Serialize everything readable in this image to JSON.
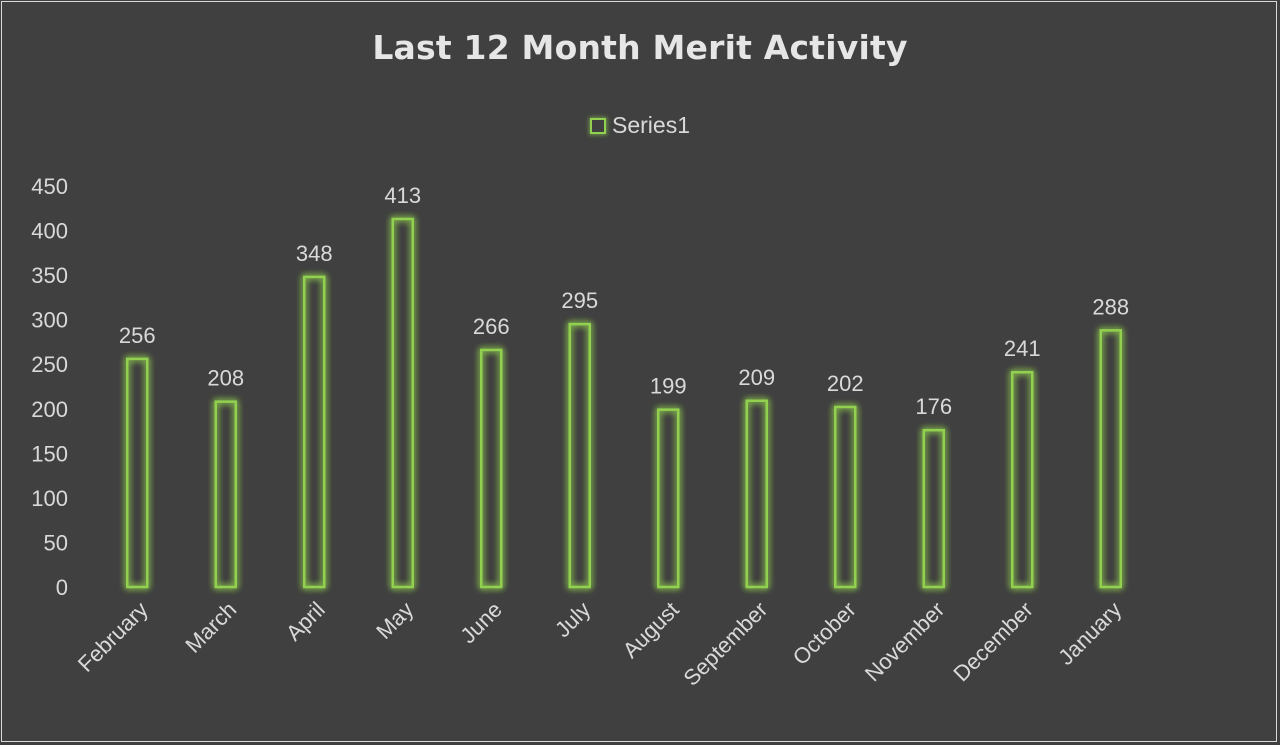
{
  "chart_data": {
    "type": "bar",
    "title": "Last 12 Month Merit Activity",
    "categories": [
      "February",
      "March",
      "April",
      "May",
      "June",
      "July",
      "August",
      "September",
      "October",
      "November",
      "December",
      "January"
    ],
    "series": [
      {
        "name": "Series1",
        "values": [
          256,
          208,
          348,
          413,
          266,
          295,
          199,
          209,
          202,
          176,
          241,
          288
        ],
        "color": "#92d050"
      }
    ],
    "xlabel": "",
    "ylabel": "",
    "ylim": [
      0,
      450
    ],
    "yticks": [
      0,
      50,
      100,
      150,
      200,
      250,
      300,
      350,
      400,
      450
    ],
    "grid": false,
    "legend": "top-center",
    "data_labels": true,
    "bar_style": "outline-glow"
  },
  "colors": {
    "background": "#404040",
    "text": "#d9d9d9",
    "accent": "#92d050"
  }
}
